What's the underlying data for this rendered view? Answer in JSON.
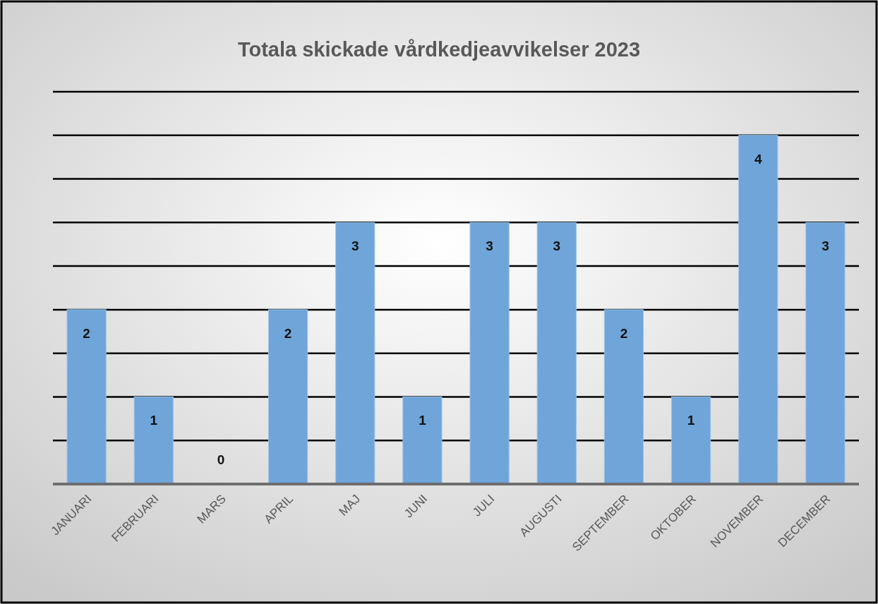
{
  "chart_data": {
    "type": "bar",
    "title": "Totala skickade vårdkedjeavvikelser 2023",
    "categories": [
      "JANUARI",
      "FEBRUARI",
      "MARS",
      "APRIL",
      "MAJ",
      "JUNI",
      "JULI",
      "AUGUSTI",
      "SEPTEMBER",
      "OKTOBER",
      "NOVEMBER",
      "DECEMBER"
    ],
    "values": [
      2,
      1,
      0,
      2,
      3,
      1,
      3,
      3,
      2,
      1,
      4,
      3
    ],
    "color": "#6fa5d9",
    "ylim": [
      0,
      4.5
    ],
    "yticks": [
      {
        "value": 0,
        "label": null
      },
      {
        "value": 0.5,
        "label": null
      },
      {
        "value": 1,
        "label": null
      },
      {
        "value": 1.5,
        "label": null
      },
      {
        "value": 2,
        "label": null
      },
      {
        "value": 2.5,
        "label": null
      },
      {
        "value": 3,
        "label": null
      },
      {
        "value": 3.5,
        "label": null
      },
      {
        "value": 4,
        "label": null
      },
      {
        "value": 4.5,
        "label": null
      }
    ],
    "tick_labels": "x",
    "grid": "y",
    "data_labels": true
  }
}
